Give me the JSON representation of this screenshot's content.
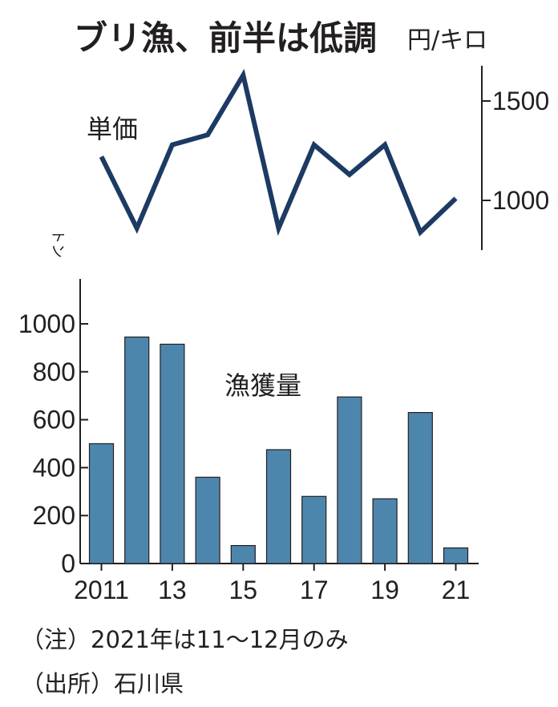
{
  "title": "ブリ漁、前半は低調",
  "notes": {
    "note": "（注）2021年は11～12月のみ",
    "source": "（出所）石川県"
  },
  "colors": {
    "line": "#1c3a63",
    "bar": "#4d86ad",
    "text": "#231f20"
  },
  "chart_data": [
    {
      "type": "line",
      "series": [
        {
          "name": "単価",
          "x": [
            2011,
            2012,
            2013,
            2014,
            2015,
            2016,
            2017,
            2018,
            2019,
            2020,
            2021
          ],
          "values": [
            1220,
            860,
            1280,
            1330,
            1630,
            860,
            1280,
            1130,
            1280,
            840,
            1010
          ]
        }
      ],
      "unit": "円/キロ",
      "y_axis_position": "right",
      "y_ticks": [
        1000,
        1500
      ],
      "ylim": [
        800,
        1700
      ],
      "grid": false
    },
    {
      "type": "bar",
      "series": [
        {
          "name": "漁獲量",
          "values": [
            500,
            945,
            915,
            360,
            75,
            475,
            280,
            695,
            270,
            630,
            65
          ]
        }
      ],
      "categories": [
        2011,
        2012,
        2013,
        2014,
        2015,
        2016,
        2017,
        2018,
        2019,
        2020,
        2021
      ],
      "x_tick_labels": [
        "2011",
        "",
        "13",
        "",
        "15",
        "",
        "17",
        "",
        "19",
        "",
        "21"
      ],
      "unit": "トン",
      "y_axis_position": "left",
      "y_ticks": [
        0,
        200,
        400,
        600,
        800,
        1000
      ],
      "ylim": [
        0,
        1150
      ],
      "grid": false
    }
  ]
}
